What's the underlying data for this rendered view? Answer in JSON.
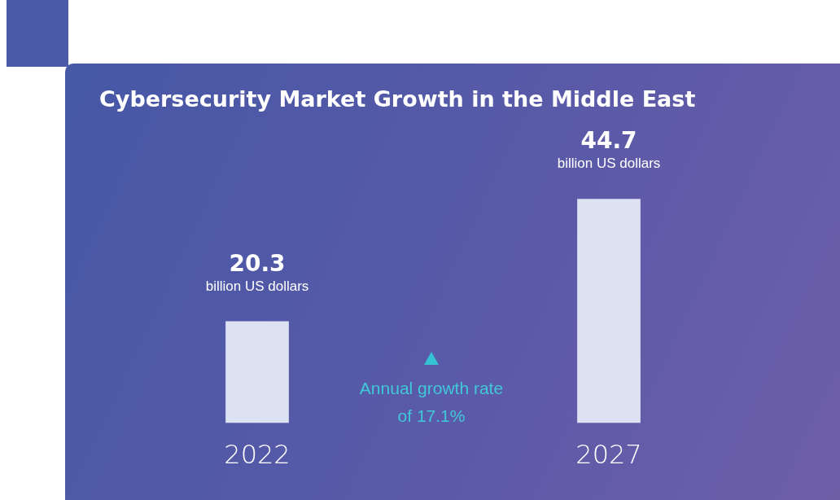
{
  "chart_data": {
    "type": "bar",
    "title": "Cybersecurity Market Growth in the Middle East",
    "categories": [
      "2022",
      "2027"
    ],
    "values": [
      20.3,
      44.7
    ],
    "color": "#dde2f2",
    "data_labels": true,
    "annotations": [
      {
        "text": "billion US dollars",
        "x": "2022",
        "y": 20.3
      },
      {
        "text": "billion US dollars",
        "x": "2027",
        "y": 44.7
      },
      "Annual growth rate of 17.1%"
    ],
    "grid": false,
    "legend": false
  }
}
